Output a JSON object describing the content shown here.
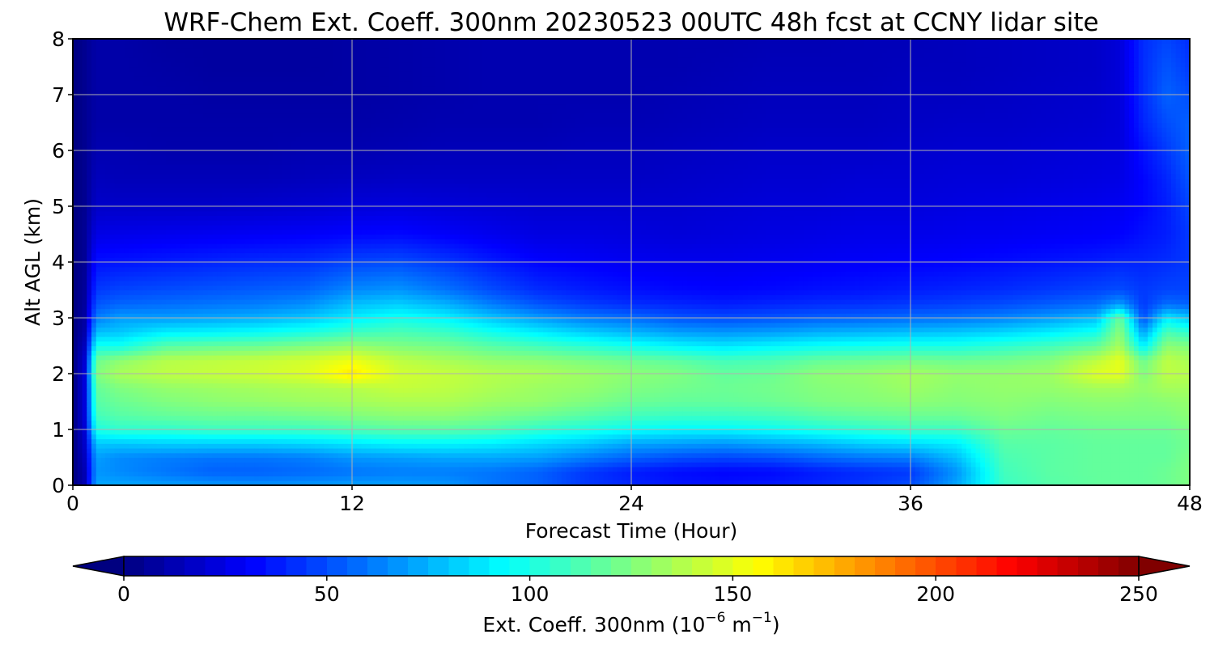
{
  "chart_data": {
    "type": "heatmap",
    "title": "WRF-Chem Ext. Coeff. 300nm  20230523 00UTC 48h fcst at CCNY lidar site",
    "xlabel": "Forecast Time (Hour)",
    "ylabel": "Alt AGL (km)",
    "xlim": [
      0,
      48
    ],
    "ylim": [
      0,
      8
    ],
    "xticks": [
      "0",
      "12",
      "24",
      "36",
      "48"
    ],
    "yticks": [
      "0",
      "1",
      "2",
      "3",
      "4",
      "5",
      "6",
      "7",
      "8"
    ],
    "grid": true,
    "colormap": "jet",
    "colorbar": {
      "label_main": "Ext. Coeff. 300nm  (10",
      "label_exp1": "−6",
      "label_mid": " m",
      "label_exp2": "−1",
      "label_end": ")",
      "range": [
        0,
        250
      ],
      "ticks": [
        "0",
        "50",
        "100",
        "150",
        "200",
        "250"
      ],
      "extend": "both"
    },
    "x": [
      0,
      0.5,
      1,
      2,
      4,
      6,
      8,
      10,
      12,
      14,
      16,
      18,
      20,
      22,
      24,
      26,
      28,
      30,
      32,
      34,
      36,
      38,
      40,
      42,
      44,
      45,
      46,
      47,
      48
    ],
    "y": [
      0,
      0.25,
      0.5,
      0.75,
      1,
      1.25,
      1.5,
      1.75,
      2,
      2.25,
      2.5,
      2.75,
      3,
      3.25,
      3.5,
      4,
      4.5,
      5,
      5.5,
      6,
      6.5,
      7,
      7.5,
      8
    ],
    "z_by_time": [
      [
        0,
        0,
        0,
        0,
        0,
        0,
        0,
        0,
        0,
        0,
        0,
        0,
        0,
        0,
        0,
        0,
        0,
        0,
        0,
        0,
        0,
        0,
        0,
        0
      ],
      [
        12,
        12,
        15,
        18,
        20,
        22,
        22,
        22,
        22,
        20,
        15,
        10,
        8,
        7,
        6,
        5,
        5,
        4,
        4,
        4,
        4,
        4,
        4,
        4
      ],
      [
        72,
        68,
        70,
        80,
        100,
        110,
        115,
        118,
        125,
        120,
        98,
        78,
        62,
        52,
        45,
        35,
        25,
        18,
        15,
        12,
        10,
        10,
        10,
        10
      ],
      [
        72,
        65,
        65,
        80,
        105,
        115,
        120,
        125,
        135,
        128,
        98,
        80,
        70,
        56,
        48,
        36,
        26,
        18,
        14,
        12,
        10,
        10,
        10,
        10
      ],
      [
        70,
        60,
        62,
        82,
        105,
        118,
        125,
        130,
        140,
        138,
        115,
        90,
        70,
        58,
        50,
        38,
        27,
        18,
        14,
        11,
        10,
        10,
        9,
        8
      ],
      [
        68,
        55,
        60,
        82,
        108,
        120,
        128,
        132,
        142,
        140,
        118,
        92,
        72,
        60,
        52,
        40,
        28,
        18,
        14,
        11,
        10,
        9,
        8,
        8
      ],
      [
        67,
        55,
        60,
        82,
        108,
        120,
        130,
        134,
        144,
        142,
        120,
        95,
        75,
        62,
        54,
        42,
        29,
        19,
        14,
        11,
        10,
        9,
        8,
        8
      ],
      [
        68,
        57,
        62,
        84,
        108,
        122,
        132,
        136,
        148,
        145,
        125,
        100,
        80,
        66,
        56,
        43,
        30,
        20,
        15,
        12,
        10,
        9,
        8,
        8
      ],
      [
        70,
        60,
        68,
        88,
        112,
        125,
        134,
        138,
        162,
        152,
        130,
        108,
        90,
        78,
        65,
        48,
        32,
        22,
        16,
        12,
        10,
        9,
        9,
        9
      ],
      [
        70,
        62,
        70,
        92,
        115,
        128,
        136,
        142,
        145,
        140,
        125,
        112,
        98,
        82,
        68,
        50,
        33,
        23,
        17,
        13,
        11,
        10,
        10,
        10
      ],
      [
        68,
        62,
        72,
        92,
        115,
        128,
        136,
        140,
        142,
        135,
        122,
        108,
        92,
        75,
        60,
        45,
        30,
        22,
        17,
        14,
        12,
        11,
        11,
        11
      ],
      [
        60,
        60,
        72,
        90,
        112,
        124,
        132,
        136,
        138,
        130,
        115,
        98,
        80,
        62,
        50,
        38,
        27,
        21,
        17,
        14,
        12,
        12,
        12,
        12
      ],
      [
        55,
        55,
        70,
        85,
        105,
        120,
        130,
        132,
        136,
        128,
        110,
        90,
        70,
        52,
        42,
        32,
        24,
        20,
        17,
        14,
        12,
        12,
        12,
        12
      ],
      [
        45,
        45,
        62,
        80,
        100,
        115,
        125,
        130,
        132,
        124,
        104,
        82,
        62,
        46,
        38,
        30,
        24,
        20,
        17,
        15,
        13,
        12,
        12,
        12
      ],
      [
        40,
        38,
        55,
        72,
        95,
        110,
        120,
        125,
        128,
        120,
        98,
        76,
        58,
        42,
        35,
        28,
        23,
        20,
        17,
        15,
        13,
        12,
        12,
        12
      ],
      [
        36,
        34,
        50,
        70,
        92,
        108,
        118,
        122,
        125,
        116,
        92,
        70,
        52,
        40,
        33,
        27,
        22,
        20,
        18,
        16,
        14,
        13,
        12,
        12
      ],
      [
        35,
        32,
        48,
        68,
        92,
        108,
        118,
        120,
        118,
        110,
        88,
        68,
        50,
        38,
        32,
        27,
        23,
        21,
        19,
        17,
        15,
        14,
        13,
        12
      ],
      [
        37,
        33,
        50,
        72,
        95,
        110,
        120,
        122,
        120,
        112,
        92,
        70,
        52,
        40,
        33,
        28,
        24,
        22,
        20,
        18,
        16,
        15,
        14,
        13
      ],
      [
        40,
        38,
        56,
        76,
        100,
        115,
        124,
        126,
        128,
        118,
        96,
        74,
        55,
        42,
        35,
        29,
        25,
        22,
        20,
        18,
        16,
        15,
        14,
        13
      ],
      [
        44,
        42,
        60,
        82,
        104,
        118,
        126,
        128,
        130,
        120,
        98,
        76,
        56,
        43,
        36,
        30,
        26,
        23,
        21,
        18,
        16,
        15,
        14,
        14
      ],
      [
        50,
        45,
        62,
        85,
        108,
        120,
        128,
        132,
        134,
        122,
        100,
        78,
        58,
        45,
        38,
        31,
        26,
        23,
        21,
        19,
        17,
        16,
        15,
        14
      ],
      [
        72,
        68,
        78,
        90,
        108,
        120,
        126,
        128,
        130,
        120,
        100,
        80,
        60,
        47,
        40,
        32,
        27,
        24,
        22,
        20,
        18,
        16,
        15,
        15
      ],
      [
        108,
        110,
        112,
        115,
        120,
        125,
        128,
        130,
        130,
        122,
        105,
        84,
        64,
        50,
        42,
        34,
        28,
        25,
        22,
        20,
        18,
        17,
        16,
        16
      ],
      [
        115,
        116,
        116,
        116,
        118,
        122,
        126,
        130,
        132,
        126,
        110,
        90,
        70,
        54,
        45,
        36,
        29,
        26,
        23,
        21,
        19,
        18,
        17,
        17
      ],
      [
        118,
        118,
        118,
        118,
        120,
        124,
        128,
        134,
        148,
        140,
        118,
        98,
        78,
        58,
        48,
        38,
        30,
        27,
        24,
        22,
        20,
        19,
        18,
        18
      ],
      [
        118,
        118,
        118,
        118,
        120,
        124,
        128,
        134,
        150,
        150,
        135,
        128,
        120,
        70,
        50,
        40,
        31,
        28,
        25,
        23,
        22,
        22,
        22,
        22
      ],
      [
        118,
        118,
        118,
        118,
        120,
        124,
        126,
        130,
        125,
        120,
        90,
        70,
        50,
        45,
        45,
        40,
        35,
        32,
        32,
        35,
        40,
        42,
        42,
        42
      ],
      [
        120,
        120,
        118,
        118,
        120,
        124,
        128,
        134,
        140,
        140,
        128,
        112,
        90,
        58,
        48,
        42,
        38,
        38,
        40,
        45,
        50,
        55,
        52,
        48
      ],
      [
        125,
        125,
        124,
        122,
        124,
        128,
        130,
        134,
        138,
        135,
        125,
        105,
        80,
        55,
        48,
        45,
        45,
        48,
        52,
        55,
        55,
        50,
        45,
        42
      ]
    ]
  }
}
